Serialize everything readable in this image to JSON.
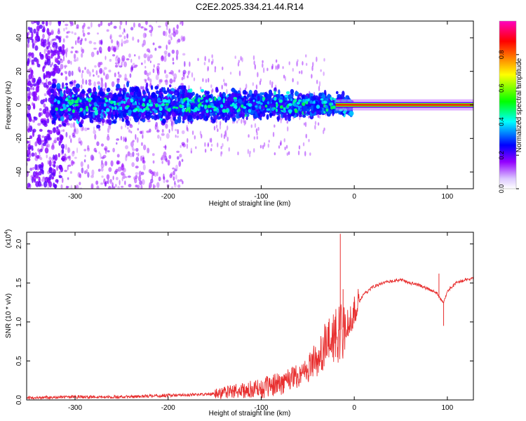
{
  "title": "C2E2.2025.334.21.44.R14",
  "chart_data": [
    {
      "type": "heatmap",
      "xlabel": "Height of straight line (km)",
      "ylabel": "Frequency (Hz)",
      "xlim": [
        -352,
        128
      ],
      "ylim": [
        -50,
        50
      ],
      "xticks": [
        -300,
        -200,
        -100,
        0,
        100
      ],
      "yticks": [
        -40,
        -20,
        0,
        20,
        40
      ],
      "xtick_labels": [
        "-300",
        "-200",
        "-100",
        "0",
        "100"
      ],
      "ytick_labels": [
        "-40",
        "-20",
        "0",
        "20",
        "40"
      ],
      "colorbar": {
        "label": "Normalized spectral amplitude",
        "range": [
          0,
          1
        ],
        "ticks": [
          0.0,
          0.2,
          0.4,
          0.6,
          0.8
        ],
        "tick_labels": [
          "0.0",
          "0.2",
          "0.4",
          "0.6",
          "0.8"
        ],
        "colors": [
          "#ffffff",
          "#9400ff",
          "#0000ff",
          "#00ffff",
          "#00ff00",
          "#ffff00",
          "#ff8000",
          "#ff0000",
          "#ff00c0"
        ]
      },
      "feature": {
        "tone_frequency_hz": 0,
        "clean_tone_start_km": 0,
        "scintillation_spread_hz": 8
      }
    },
    {
      "type": "line",
      "xlabel": "Height of straight line (km)",
      "ylabel": "SNR (10 * v/v)",
      "y_scale_label": "(x10",
      "y_scale_exp": "4",
      "xlim": [
        -352,
        128
      ],
      "ylim": [
        0,
        2.15
      ],
      "xticks": [
        -300,
        -200,
        -100,
        0,
        100
      ],
      "yticks": [
        0.0,
        0.5,
        1.0,
        1.5,
        2.0
      ],
      "xtick_labels": [
        "-300",
        "-200",
        "-100",
        "0",
        "100"
      ],
      "ytick_labels": [
        "0.0",
        "0.5",
        "1.0",
        "1.5",
        "2.0"
      ],
      "series_color": "#e83030",
      "series": [
        {
          "name": "SNR",
          "x": [
            -352,
            -300,
            -250,
            -200,
            -150,
            -100,
            -80,
            -60,
            -50,
            -40,
            -30,
            -20,
            -15,
            -10,
            -5,
            0,
            10,
            20,
            30,
            40,
            50,
            60,
            70,
            80,
            88,
            92,
            96,
            100,
            110,
            120,
            128
          ],
          "values": [
            0.02,
            0.03,
            0.03,
            0.05,
            0.07,
            0.12,
            0.18,
            0.3,
            0.4,
            0.55,
            0.7,
            0.8,
            0.9,
            0.95,
            1.0,
            1.15,
            1.35,
            1.45,
            1.5,
            1.52,
            1.54,
            1.5,
            1.47,
            1.42,
            1.38,
            1.3,
            1.25,
            1.4,
            1.5,
            1.55,
            1.55
          ],
          "peaks": [
            {
              "x": -15,
              "y": 2.13
            },
            {
              "x": -12,
              "y": 1.42
            },
            {
              "x": 96,
              "y": 0.95
            },
            {
              "x": 91,
              "y": 1.62
            }
          ]
        }
      ]
    }
  ]
}
